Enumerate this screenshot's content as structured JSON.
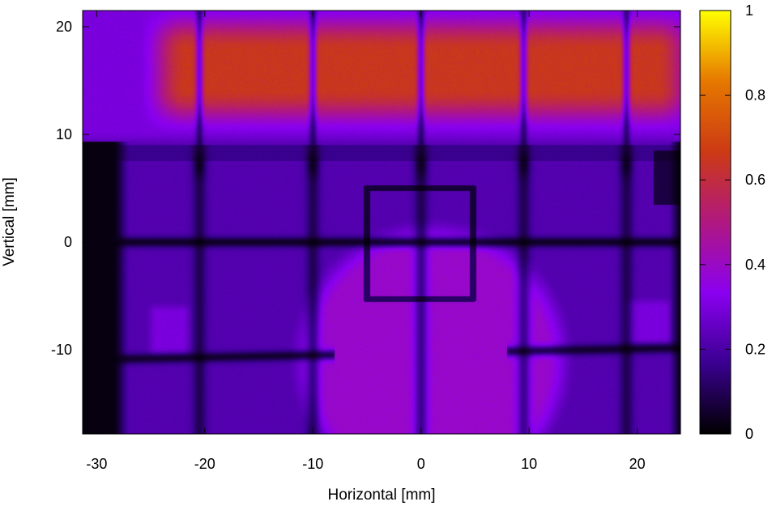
{
  "chart_data": {
    "type": "heatmap",
    "title": "",
    "xlabel": "Horizontal [mm]",
    "ylabel": "Vertical [mm]",
    "xlim": [
      -31.3,
      24.0
    ],
    "ylim": [
      -17.8,
      21.5
    ],
    "x_ticks": [
      -30,
      -20,
      -10,
      0,
      10,
      20
    ],
    "y_ticks": [
      -10,
      0,
      10,
      20
    ],
    "colorbar": {
      "range": [
        0,
        1
      ],
      "ticks": [
        0,
        0.2,
        0.4,
        0.6,
        0.8,
        1
      ],
      "palette": [
        "#000000",
        "#3a0090",
        "#8a00f0",
        "#b01880",
        "#cc3a14",
        "#e67800",
        "#ffff00"
      ]
    },
    "features": {
      "high_band": {
        "y_range": [
          12,
          20
        ],
        "x_range": [
          -24,
          24
        ],
        "value": 0.65
      },
      "upper_plateau": {
        "y_range": [
          9.5,
          21.5
        ],
        "value": 0.3
      },
      "body_level": 0.22,
      "dark_left_edge": {
        "x_range": [
          -31.3,
          -28
        ],
        "value": 0.02
      },
      "central_disk": {
        "center": [
          1,
          -11
        ],
        "radius": 12,
        "value": 0.42
      },
      "wire_columns_x": [
        -20.5,
        -10,
        0,
        9.5,
        19
      ],
      "wire_row_y": 0,
      "wire_row_lower_y": -10.3,
      "square": {
        "x_range": [
          -5,
          4.8
        ],
        "y_range": [
          -5.3,
          5
        ]
      },
      "left_patch": {
        "x_range": [
          -25,
          -21.5
        ],
        "y_range": [
          -10.5,
          -6
        ],
        "value": 0.3
      },
      "right_patch": {
        "x_range": [
          19,
          23
        ],
        "y_range": [
          -9.5,
          -5.5
        ],
        "value": 0.3
      }
    }
  }
}
